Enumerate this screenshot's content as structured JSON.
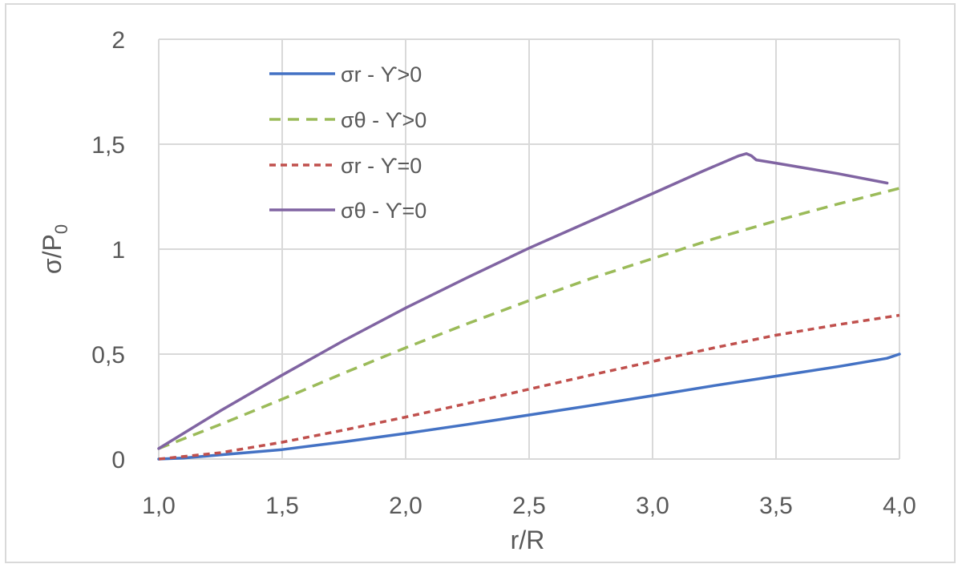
{
  "chart_data": {
    "type": "line",
    "xlabel": "r/R",
    "ylabel_main": "σ/P",
    "ylabel_sub": "0",
    "xlim": [
      1.0,
      4.0
    ],
    "ylim": [
      0,
      2
    ],
    "x_ticks": [
      "1,0",
      "1,5",
      "2,0",
      "2,5",
      "3,0",
      "3,5",
      "4,0"
    ],
    "x_tick_values": [
      1.0,
      1.5,
      2.0,
      2.5,
      3.0,
      3.5,
      4.0
    ],
    "y_ticks": [
      "0",
      "0,5",
      "1",
      "1,5",
      "2"
    ],
    "y_tick_values": [
      0,
      0.5,
      1,
      1.5,
      2
    ],
    "grid": true,
    "legend_position": "top-left",
    "series": [
      {
        "name": "σr - ϒ>0",
        "color": "#4472c4",
        "dash": "solid",
        "points": [
          [
            1.0,
            0.0
          ],
          [
            1.1,
            0.005
          ],
          [
            1.25,
            0.02
          ],
          [
            1.5,
            0.045
          ],
          [
            1.75,
            0.082
          ],
          [
            2.0,
            0.122
          ],
          [
            2.25,
            0.165
          ],
          [
            2.5,
            0.21
          ],
          [
            2.75,
            0.255
          ],
          [
            3.0,
            0.302
          ],
          [
            3.25,
            0.35
          ],
          [
            3.5,
            0.395
          ],
          [
            3.75,
            0.44
          ],
          [
            3.95,
            0.48
          ],
          [
            4.0,
            0.5
          ]
        ]
      },
      {
        "name": "σθ - ϒ>0",
        "color": "#9bbb59",
        "dash": "dashed",
        "points": [
          [
            1.0,
            0.05
          ],
          [
            1.25,
            0.165
          ],
          [
            1.5,
            0.285
          ],
          [
            1.75,
            0.41
          ],
          [
            2.0,
            0.53
          ],
          [
            2.25,
            0.645
          ],
          [
            2.5,
            0.755
          ],
          [
            2.75,
            0.86
          ],
          [
            3.0,
            0.955
          ],
          [
            3.25,
            1.05
          ],
          [
            3.5,
            1.135
          ],
          [
            3.75,
            1.215
          ],
          [
            4.0,
            1.29
          ]
        ]
      },
      {
        "name": "σr - ϒ=0",
        "color": "#c0504d",
        "dash": "dotted",
        "points": [
          [
            1.0,
            0.0
          ],
          [
            1.25,
            0.03
          ],
          [
            1.5,
            0.08
          ],
          [
            1.75,
            0.138
          ],
          [
            2.0,
            0.2
          ],
          [
            2.25,
            0.265
          ],
          [
            2.5,
            0.333
          ],
          [
            2.75,
            0.4
          ],
          [
            3.0,
            0.465
          ],
          [
            3.25,
            0.53
          ],
          [
            3.5,
            0.59
          ],
          [
            3.75,
            0.64
          ],
          [
            4.0,
            0.685
          ]
        ]
      },
      {
        "name": "σθ - ϒ=0",
        "color": "#8064a2",
        "dash": "solid",
        "points": [
          [
            1.0,
            0.05
          ],
          [
            1.25,
            0.23
          ],
          [
            1.5,
            0.4
          ],
          [
            1.75,
            0.565
          ],
          [
            2.0,
            0.72
          ],
          [
            2.25,
            0.865
          ],
          [
            2.5,
            1.005
          ],
          [
            2.75,
            1.135
          ],
          [
            3.0,
            1.265
          ],
          [
            3.2,
            1.37
          ],
          [
            3.35,
            1.445
          ],
          [
            3.38,
            1.455
          ],
          [
            3.4,
            1.445
          ],
          [
            3.42,
            1.425
          ],
          [
            3.5,
            1.41
          ],
          [
            3.75,
            1.36
          ],
          [
            3.95,
            1.315
          ]
        ]
      }
    ]
  }
}
